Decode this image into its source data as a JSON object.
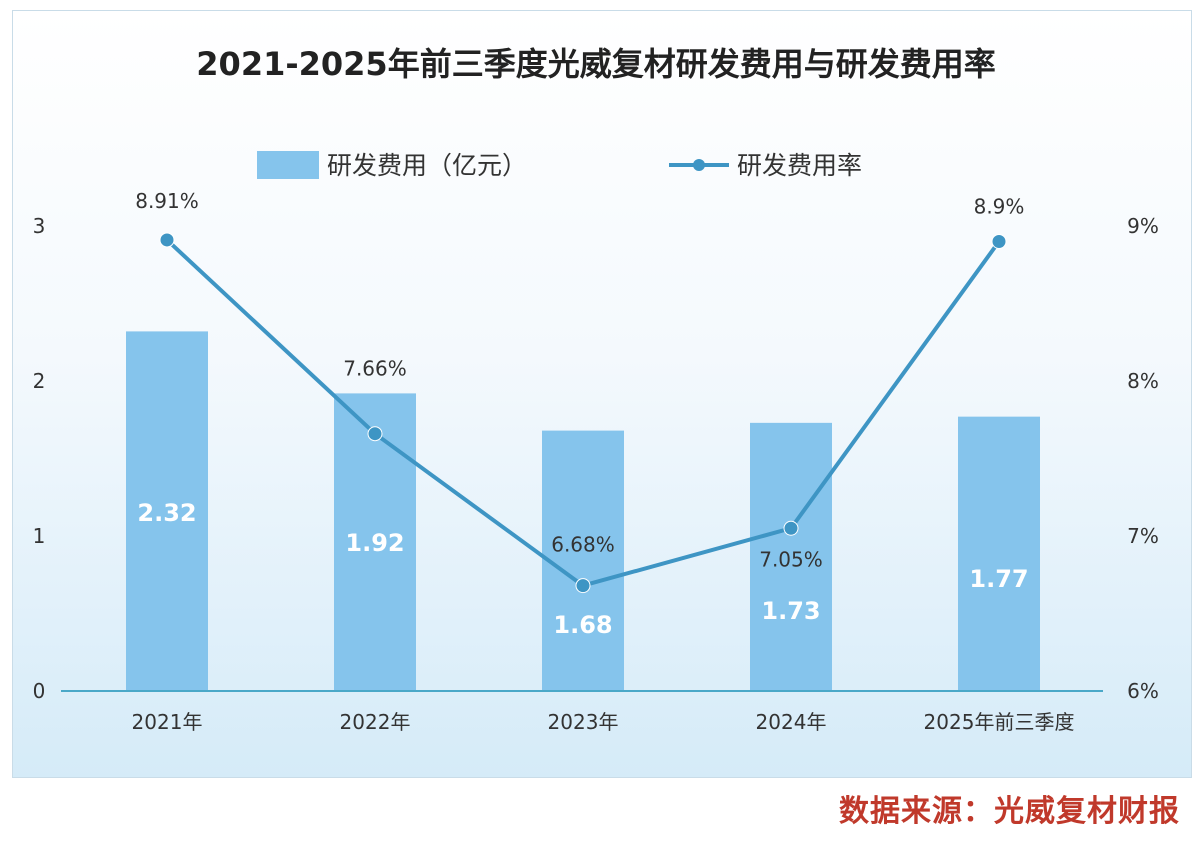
{
  "chart_data": {
    "type": "bar+line",
    "title": "2021-2025年前三季度光威复材研发费用与研发费用率",
    "categories": [
      "2021年",
      "2022年",
      "2023年",
      "2024年",
      "2025年前三季度"
    ],
    "series": [
      {
        "name": "研发费用（亿元）",
        "type": "bar",
        "axis": "left",
        "values": [
          2.32,
          1.92,
          1.68,
          1.73,
          1.77
        ],
        "labels": [
          "2.32",
          "1.92",
          "1.68",
          "1.73",
          "1.77"
        ]
      },
      {
        "name": "研发费用率",
        "type": "line",
        "axis": "right",
        "values": [
          8.91,
          7.66,
          6.68,
          7.05,
          8.9
        ],
        "labels": [
          "8.91%",
          "7.66%",
          "6.68%",
          "7.05%",
          "8.9%"
        ]
      }
    ],
    "y_left": {
      "ticks": [
        "0",
        "1",
        "2",
        "3"
      ],
      "range": [
        0,
        3
      ]
    },
    "y_right": {
      "ticks": [
        "6%",
        "7%",
        "8%",
        "9%"
      ],
      "range": [
        6,
        9
      ]
    },
    "legend": "top-center"
  },
  "colors": {
    "bar": "#85c4ec",
    "line": "#3e95c4",
    "axis": "#4aa8c8",
    "source": "#c0392b"
  },
  "source_text": "数据来源：光威复材财报"
}
